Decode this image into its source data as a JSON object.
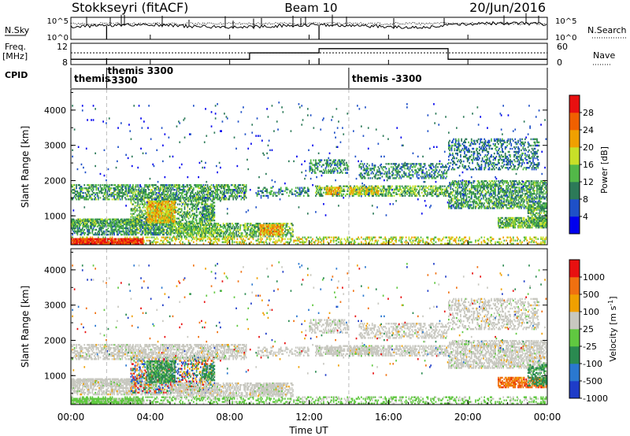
{
  "header": {
    "title": "Stokkseyri (fitACF)",
    "beam": "Beam 10",
    "date": "20/Jun/2016"
  },
  "status_panels": {
    "nsky_label": "N.Sky",
    "nsearch_label": "N.Search",
    "freq_label": "Freq.",
    "freq_unit": "[MHz]",
    "nave_label": "Nave",
    "cpid_label": "CPID",
    "nsky_ticks": [
      "10^5",
      "10^0"
    ],
    "nsearch_ticks": [
      "10^5",
      "10^0"
    ],
    "freq_ticks": [
      "8",
      "12"
    ],
    "nave_ticks": [
      "60",
      "0"
    ],
    "cpid_entries": [
      {
        "start": 0.0,
        "label": "themis"
      },
      {
        "start": 1.8,
        "label": "themis  3300\n-3300"
      },
      {
        "start": 14.0,
        "label": "themis  -3300"
      }
    ],
    "freq_steps": [
      {
        "start": 0.0,
        "end": 9.0,
        "level": 0.25
      },
      {
        "start": 9.0,
        "end": 12.5,
        "level": 0.55
      },
      {
        "start": 12.5,
        "end": 19.0,
        "level": 0.75
      },
      {
        "start": 19.0,
        "end": 24.0,
        "level": 0.25
      }
    ],
    "nave_level": 0.55
  },
  "chart_data": [
    {
      "type": "heatmap",
      "name": "power",
      "ylabel": "Slant Range [km]",
      "xlabel": "",
      "ylim": [
        180,
        4600
      ],
      "xlim": [
        0,
        24
      ],
      "yticks": [
        "1000",
        "2000",
        "3000",
        "4000"
      ],
      "xticks": [
        "00:00",
        "04:00",
        "08:00",
        "12:00",
        "16:00",
        "20:00",
        "00:00"
      ],
      "colorbar": {
        "label": "Power [dB]",
        "ticks": [
          "4",
          "8",
          "12",
          "16",
          "20",
          "24",
          "28"
        ],
        "colors": [
          "#0000ee",
          "#1e50c8",
          "#2c7a58",
          "#52b848",
          "#c8e028",
          "#f0a000",
          "#f06000",
          "#e81010"
        ]
      }
    },
    {
      "type": "heatmap",
      "name": "velocity",
      "ylabel": "Slant Range [km]",
      "xlabel": "Time UT",
      "ylim": [
        180,
        4600
      ],
      "xlim": [
        0,
        24
      ],
      "yticks": [
        "1000",
        "2000",
        "3000",
        "4000"
      ],
      "xticks": [
        "00:00",
        "04:00",
        "08:00",
        "12:00",
        "16:00",
        "20:00",
        "00:00"
      ],
      "colorbar": {
        "label": "Velocity [m s",
        "label_sup": "-1",
        "label_end": "]",
        "ticks": [
          "1000",
          "500",
          "100",
          "25",
          "-25",
          "-100",
          "-500",
          "-1000"
        ],
        "colors": [
          "#1e3cc8",
          "#2a78d0",
          "#2a8a50",
          "#60c840",
          "#c8c8c0",
          "#f0a000",
          "#f07010",
          "#e81010"
        ]
      }
    }
  ],
  "regions": [
    {
      "t0": 0.0,
      "t1": 24.0,
      "r0": 190,
      "r1": 400,
      "w": 0.35,
      "p": 18,
      "v": "gnd"
    },
    {
      "t0": 0.0,
      "t1": 3.6,
      "r0": 190,
      "r1": 350,
      "w": 0.9,
      "p": 29,
      "v": "gnd"
    },
    {
      "t0": 0.0,
      "t1": 5.0,
      "r0": 450,
      "r1": 900,
      "w": 0.55,
      "p": 11,
      "v": "grey"
    },
    {
      "t0": 0.0,
      "t1": 3.5,
      "r0": 700,
      "r1": 900,
      "w": 0.7,
      "p": 13,
      "v": "grey"
    },
    {
      "t0": 3.0,
      "t1": 7.2,
      "r0": 500,
      "r1": 1500,
      "w": 0.45,
      "p": 13,
      "v": "mix"
    },
    {
      "t0": 3.8,
      "t1": 5.2,
      "r0": 800,
      "r1": 1400,
      "w": 0.8,
      "p": 20,
      "v": "green"
    },
    {
      "t0": 6.6,
      "t1": 7.2,
      "r0": 850,
      "r1": 1300,
      "w": 0.6,
      "p": 12,
      "v": "green"
    },
    {
      "t0": 5.0,
      "t1": 11.2,
      "r0": 400,
      "r1": 800,
      "w": 0.55,
      "p": 14,
      "v": "grey"
    },
    {
      "t0": 9.5,
      "t1": 10.7,
      "r0": 450,
      "r1": 750,
      "w": 0.8,
      "p": 22,
      "v": "grey"
    },
    {
      "t0": 0.0,
      "t1": 8.8,
      "r0": 1450,
      "r1": 1900,
      "w": 0.55,
      "p": 12,
      "v": "grey"
    },
    {
      "t0": 9.3,
      "t1": 12.0,
      "r0": 1550,
      "r1": 1800,
      "w": 0.35,
      "p": 11,
      "v": "grey"
    },
    {
      "t0": 12.3,
      "t1": 19.0,
      "r0": 1550,
      "r1": 1850,
      "w": 0.5,
      "p": 14,
      "v": "grey"
    },
    {
      "t0": 12.8,
      "t1": 13.6,
      "r0": 1600,
      "r1": 1800,
      "w": 0.8,
      "p": 20,
      "v": "grey"
    },
    {
      "t0": 14.0,
      "t1": 15.5,
      "r0": 1600,
      "r1": 1800,
      "w": 0.7,
      "p": 19,
      "v": "grey"
    },
    {
      "t0": 12.0,
      "t1": 14.0,
      "r0": 2200,
      "r1": 2600,
      "w": 0.45,
      "p": 11,
      "v": "grey"
    },
    {
      "t0": 14.5,
      "t1": 19.0,
      "r0": 2050,
      "r1": 2500,
      "w": 0.4,
      "p": 10,
      "v": "grey"
    },
    {
      "t0": 19.0,
      "t1": 24.0,
      "r0": 1200,
      "r1": 2000,
      "w": 0.55,
      "p": 12,
      "v": "grey"
    },
    {
      "t0": 19.0,
      "t1": 23.6,
      "r0": 2300,
      "r1": 3200,
      "w": 0.35,
      "p": 9,
      "v": "grey"
    },
    {
      "t0": 21.5,
      "t1": 24.0,
      "r0": 650,
      "r1": 950,
      "w": 0.7,
      "p": 14,
      "v": "orange"
    },
    {
      "t0": 23.0,
      "t1": 24.0,
      "r0": 700,
      "r1": 1300,
      "w": 0.6,
      "p": 13,
      "v": "green"
    },
    {
      "t0": 0.0,
      "t1": 24.0,
      "r0": 1000,
      "r1": 4200,
      "w": 0.012,
      "p": 6,
      "v": "mix"
    }
  ]
}
